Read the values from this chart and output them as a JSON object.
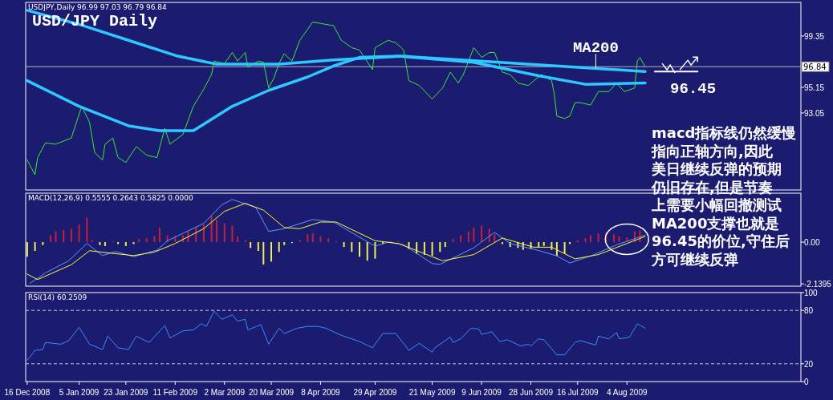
{
  "chart_data": [
    {
      "type": "line",
      "title": "USD/JPY Daily",
      "annotations": [
        "USDJPY,Daily  96.99 97.03 96.79 96.84",
        {
          "text": "MA200",
          "x": "2009-07-23",
          "y": 96.7
        },
        {
          "text": "96.45",
          "x": "2009-08-12",
          "y": 96.45
        },
        "macd指标线仍然缓慢",
        "指向正轴方向,因此",
        "美日继续反弹的预期",
        "仍旧存在,但是节奏",
        "上需要小幅回撤测试",
        "MA200支撑也就是",
        "96.45的价位,守住后",
        "方可继续反弹"
      ],
      "xlim": [
        "2008-12-15T10:00",
        "2009-10-10"
      ],
      "ylim": [
        86.75,
        102.1
      ],
      "yticks": [
        99.35,
        95.15,
        93.05
      ],
      "tick_labels": "y",
      "ref_lines": [
        {
          "axis": "y",
          "value": 96.84,
          "label": "96.84",
          "color": "#b4b4c8"
        }
      ],
      "series": [
        {
          "color": "#33ee33",
          "x": [
            "2008-12-16",
            "2008-12-19",
            "2008-12-20",
            "2008-12-23",
            "2008-12-27",
            "2009-01-02",
            "2009-01-06",
            "2009-01-09",
            "2009-01-11",
            "2009-01-14",
            "2009-01-15",
            "2009-01-18",
            "2009-01-20",
            "2009-01-23",
            "2009-01-27",
            "2009-01-31",
            "2009-02-04",
            "2009-02-07",
            "2009-02-09",
            "2009-02-14",
            "2009-02-18",
            "2009-02-22",
            "2009-02-25",
            "2009-02-26",
            "2009-03-02",
            "2009-03-05",
            "2009-03-07",
            "2009-03-10",
            "2009-03-11",
            "2009-03-15",
            "2009-03-17",
            "2009-03-19",
            "2009-03-21",
            "2009-03-23",
            "2009-03-25",
            "2009-03-28",
            "2009-03-31",
            "2009-04-03",
            "2009-04-05",
            "2009-04-10",
            "2009-04-13",
            "2009-04-16",
            "2009-04-20",
            "2009-04-23",
            "2009-04-28",
            "2009-04-29",
            "2009-05-04",
            "2009-05-07",
            "2009-05-10",
            "2009-05-12",
            "2009-05-16",
            "2009-05-21",
            "2009-05-25",
            "2009-05-28",
            "2009-05-31",
            "2009-06-02",
            "2009-06-06",
            "2009-06-09",
            "2009-06-12",
            "2009-06-14",
            "2009-06-17",
            "2009-06-20",
            "2009-06-23",
            "2009-06-27",
            "2009-07-02",
            "2009-07-06",
            "2009-07-07",
            "2009-07-08",
            "2009-07-11",
            "2009-07-13",
            "2009-07-15",
            "2009-07-17",
            "2009-07-21",
            "2009-07-24",
            "2009-07-28",
            "2009-07-31",
            "2009-08-03",
            "2009-08-07",
            "2009-08-08",
            "2009-08-09",
            "2009-08-11"
          ],
          "values": [
            89.2,
            88.0,
            89.4,
            90.6,
            90.5,
            91.0,
            93.6,
            92.3,
            89.8,
            89.2,
            90.5,
            91.0,
            89.4,
            89.0,
            90.3,
            89.6,
            89.4,
            91.8,
            90.5,
            91.3,
            93.6,
            95.0,
            96.2,
            97.3,
            97.1,
            98.0,
            97.3,
            98.0,
            96.8,
            97.3,
            97.2,
            95.1,
            95.9,
            97.1,
            97.9,
            97.3,
            99.0,
            99.9,
            100.5,
            100.3,
            100.2,
            99.0,
            98.4,
            98.2,
            96.6,
            98.4,
            99.0,
            98.8,
            98.2,
            95.7,
            95.3,
            94.2,
            95.1,
            96.4,
            95.5,
            96.2,
            98.4,
            97.6,
            98.0,
            98.0,
            96.4,
            96.2,
            95.5,
            95.3,
            96.2,
            95.7,
            94.6,
            92.8,
            92.6,
            92.8,
            93.9,
            93.9,
            93.7,
            94.8,
            94.8,
            95.5,
            94.8,
            95.1,
            97.3,
            97.6,
            96.84
          ]
        },
        {
          "color": "#2ec8ff",
          "x": [
            "2008-12-16",
            "2009-01-05",
            "2009-01-24",
            "2009-02-12",
            "2009-02-27",
            "2009-03-23",
            "2009-04-13",
            "2009-05-10",
            "2009-05-16",
            "2009-06-16",
            "2009-07-15",
            "2009-08-11"
          ],
          "values": [
            101.45,
            100.3,
            99.0,
            97.7,
            97.05,
            97.05,
            97.4,
            97.7,
            97.6,
            97.2,
            96.8,
            96.45
          ]
        },
        {
          "color": "#2ec8ff",
          "x": [
            "2008-12-16",
            "2009-01-05",
            "2009-01-24",
            "2009-02-05",
            "2009-02-18",
            "2009-03-05",
            "2009-03-19",
            "2009-04-03",
            "2009-04-13",
            "2009-04-23",
            "2009-05-08",
            "2009-06-06",
            "2009-07-01",
            "2009-07-19",
            "2009-08-11"
          ],
          "values": [
            95.7,
            93.6,
            92.0,
            91.6,
            91.6,
            93.6,
            94.9,
            96.0,
            96.9,
            97.6,
            97.7,
            97.2,
            96.1,
            95.4,
            95.5
          ]
        }
      ]
    },
    {
      "type": "bar",
      "annotations": [
        "MACD(12,26,9) 0.5555 0.2643 0.5825 0.0000"
      ],
      "xlim": [
        "2008-12-15T10:00",
        "2009-10-10"
      ],
      "ylim": [
        -2.26,
        2.51
      ],
      "yticks": [
        {
          "value": 0,
          "label": "0.00"
        },
        -2.1395
      ],
      "tick_labels": "y",
      "series": [
        {
          "x": [
            "2008-12-16",
            "2008-12-19",
            "2008-12-22",
            "2008-12-25",
            "2008-12-27",
            "2008-12-30",
            "2009-01-02",
            "2009-01-05",
            "2009-01-08",
            "2009-01-10",
            "2009-01-13",
            "2009-01-15",
            "2009-01-18",
            "2009-01-20",
            "2009-01-23",
            "2009-01-26",
            "2009-01-28",
            "2009-01-31",
            "2009-02-03",
            "2009-02-05",
            "2009-02-08",
            "2009-02-11",
            "2009-02-14",
            "2009-02-16",
            "2009-02-19",
            "2009-02-22",
            "2009-02-25",
            "2009-02-27",
            "2009-03-02",
            "2009-03-05",
            "2009-03-07",
            "2009-03-10",
            "2009-03-12",
            "2009-03-15",
            "2009-03-17",
            "2009-03-20",
            "2009-03-23",
            "2009-03-25",
            "2009-03-28",
            "2009-03-31",
            "2009-04-03",
            "2009-04-05",
            "2009-04-08",
            "2009-04-11",
            "2009-04-14",
            "2009-04-17",
            "2009-04-20",
            "2009-04-23",
            "2009-04-26",
            "2009-04-29",
            "2009-05-02",
            "2009-05-05",
            "2009-05-08",
            "2009-05-12",
            "2009-05-15",
            "2009-05-18",
            "2009-05-21",
            "2009-05-24",
            "2009-05-26",
            "2009-05-29",
            "2009-06-01",
            "2009-06-04",
            "2009-06-06",
            "2009-06-09",
            "2009-06-12",
            "2009-06-14",
            "2009-06-17",
            "2009-06-20",
            "2009-06-23",
            "2009-06-25",
            "2009-06-28",
            "2009-07-01",
            "2009-07-03",
            "2009-07-06",
            "2009-07-08",
            "2009-07-11",
            "2009-07-13",
            "2009-07-16",
            "2009-07-19",
            "2009-07-21",
            "2009-07-24",
            "2009-07-27",
            "2009-07-30",
            "2009-08-01",
            "2009-08-04",
            "2009-08-07",
            "2009-08-09"
          ],
          "values": [
            -0.75,
            -0.45,
            -0.15,
            0.35,
            0.55,
            0.62,
            0.68,
            0.9,
            1.25,
            0.1,
            -0.15,
            -0.2,
            0.05,
            -0.1,
            -0.2,
            -0.1,
            0.15,
            0.2,
            0.3,
            0.75,
            0.35,
            0.3,
            0.35,
            0.55,
            0.75,
            0.9,
            1.35,
            1.15,
            0.95,
            0.85,
            0.3,
            0.1,
            -0.3,
            -0.45,
            -1.15,
            -1.0,
            -0.5,
            -0.15,
            -0.05,
            0.1,
            0.4,
            0.45,
            0.3,
            0.2,
            0.05,
            -0.25,
            -0.5,
            -0.75,
            -0.95,
            -0.85,
            -0.1,
            0.05,
            0.05,
            -0.35,
            -0.6,
            -0.65,
            -0.7,
            -0.5,
            -0.25,
            0.15,
            0.35,
            0.55,
            0.75,
            0.85,
            0.7,
            0.4,
            -0.1,
            -0.25,
            -0.3,
            -0.4,
            -0.35,
            -0.25,
            -0.2,
            -0.4,
            -0.7,
            -0.6,
            -0.1,
            0.1,
            0.2,
            0.35,
            0.45,
            0.5,
            0.4,
            0.3,
            0.25,
            0.55,
            0.6
          ],
          "colors": [
            "#f0f050",
            "#f0f050",
            "#f0f050",
            "#c81e3c",
            "#c81e3c",
            "#c81e3c",
            "#c81e3c",
            "#c81e3c",
            "#c81e3c",
            "#c81e3c",
            "#f0f050",
            "#f0f050",
            "#c81e3c",
            "#f0f050",
            "#f0f050",
            "#f0f050",
            "#c81e3c",
            "#c81e3c",
            "#c81e3c",
            "#c81e3c",
            "#c81e3c",
            "#c81e3c",
            "#c81e3c",
            "#c81e3c",
            "#c81e3c",
            "#c81e3c",
            "#c81e3c",
            "#c81e3c",
            "#c81e3c",
            "#c81e3c",
            "#c81e3c",
            "#c81e3c",
            "#f0f050",
            "#f0f050",
            "#f0f050",
            "#f0f050",
            "#f0f050",
            "#f0f050",
            "#f0f050",
            "#c81e3c",
            "#c81e3c",
            "#c81e3c",
            "#c81e3c",
            "#c81e3c",
            "#c81e3c",
            "#f0f050",
            "#f0f050",
            "#f0f050",
            "#f0f050",
            "#f0f050",
            "#f0f050",
            "#c81e3c",
            "#c81e3c",
            "#f0f050",
            "#f0f050",
            "#f0f050",
            "#f0f050",
            "#f0f050",
            "#f0f050",
            "#c81e3c",
            "#c81e3c",
            "#c81e3c",
            "#c81e3c",
            "#c81e3c",
            "#c81e3c",
            "#c81e3c",
            "#f0f050",
            "#f0f050",
            "#f0f050",
            "#f0f050",
            "#f0f050",
            "#f0f050",
            "#f0f050",
            "#f0f050",
            "#f0f050",
            "#f0f050",
            "#f0f050",
            "#c81e3c",
            "#c81e3c",
            "#c81e3c",
            "#c81e3c",
            "#c81e3c",
            "#c81e3c",
            "#c81e3c",
            "#c81e3c",
            "#c81e3c",
            "#c81e3c"
          ]
        },
        {
          "type": "line",
          "color": "#6496ff",
          "x": [
            "2008-12-17",
            "2008-12-23",
            "2009-01-01",
            "2009-01-08",
            "2009-01-14",
            "2009-01-19",
            "2009-01-26",
            "2009-02-04",
            "2009-02-08",
            "2009-02-22",
            "2009-03-01",
            "2009-03-05",
            "2009-03-14",
            "2009-03-19",
            "2009-03-25",
            "2009-04-05",
            "2009-04-13",
            "2009-04-29",
            "2009-05-04",
            "2009-05-10",
            "2009-05-21",
            "2009-05-24",
            "2009-06-06",
            "2009-06-14",
            "2009-06-20",
            "2009-07-01",
            "2009-07-08",
            "2009-07-13",
            "2009-07-21",
            "2009-07-31",
            "2009-08-11"
          ],
          "values": [
            -2.12,
            -1.58,
            -0.96,
            -0.07,
            -0.69,
            -0.48,
            -0.75,
            -0.41,
            0.07,
            0.96,
            1.92,
            2.19,
            1.78,
            0.55,
            0.69,
            1.16,
            1.03,
            -0.21,
            0,
            -0.14,
            -1.1,
            -1.14,
            -0.29,
            0.5,
            -0.07,
            -0.43,
            -0.71,
            -1.07,
            -0.71,
            -0.14,
            0.36
          ]
        },
        {
          "type": "line",
          "color": "#ffff33",
          "x": [
            "2008-12-16",
            "2008-12-20",
            "2009-01-02",
            "2009-01-09",
            "2009-01-16",
            "2009-01-26",
            "2009-02-03",
            "2009-02-11",
            "2009-02-22",
            "2009-03-02",
            "2009-03-10",
            "2009-03-17",
            "2009-03-25",
            "2009-03-31",
            "2009-04-08",
            "2009-04-14",
            "2009-04-29",
            "2009-05-08",
            "2009-05-21",
            "2009-05-25",
            "2009-06-06",
            "2009-06-17",
            "2009-06-29",
            "2009-07-06",
            "2009-07-15",
            "2009-07-24",
            "2009-08-04",
            "2009-08-11"
          ],
          "values": [
            -1.64,
            -1.92,
            -1.16,
            -0.44,
            -0.55,
            -0.69,
            -0.51,
            -0.07,
            0.69,
            1.58,
            1.99,
            1.64,
            0.75,
            0.69,
            1.03,
            1.03,
            0.07,
            -0.07,
            -0.75,
            -0.96,
            -0.64,
            0.21,
            -0.26,
            -0.26,
            -0.86,
            -0.64,
            -0.07,
            0.29
          ]
        }
      ]
    },
    {
      "type": "line",
      "annotations": [
        "RSI(14) 60.2509"
      ],
      "xlim": [
        "2008-12-15T10:00",
        "2009-10-10"
      ],
      "ylim": [
        0,
        100
      ],
      "xticks": [
        {
          "value": "2008-12-16",
          "label": "16 Dec 2008"
        },
        {
          "value": "2009-01-05",
          "label": "5 Jan 2009"
        },
        {
          "value": "2009-01-23",
          "label": "23 Jan 2009"
        },
        {
          "value": "2009-02-11",
          "label": "11 Feb 2009"
        },
        {
          "value": "2009-03-02",
          "label": "2 Mar 2009"
        },
        {
          "value": "2009-03-20",
          "label": "20 Mar 2009"
        },
        {
          "value": "2009-04-08",
          "label": "8 Apr 2009"
        },
        {
          "value": "2009-04-29",
          "label": "29 Apr 2009"
        },
        {
          "value": "2009-05-21",
          "label": "21 May 2009"
        },
        {
          "value": "2009-06-09",
          "label": "9 Jun 2009"
        },
        {
          "value": "2009-06-28",
          "label": "28 Jun 2009"
        },
        {
          "value": "2009-07-16",
          "label": "16 Jul 2009"
        },
        {
          "value": "2009-08-04",
          "label": "4 Aug 2009"
        }
      ],
      "yticks": [
        100,
        80,
        20,
        0
      ],
      "ref_lines": [
        {
          "axis": "y",
          "value": 80,
          "color": "#c8c8dc",
          "line_style": "dashed"
        },
        {
          "axis": "y",
          "value": 20,
          "color": "#c8c8dc",
          "line_style": "dashed"
        }
      ],
      "series": [
        {
          "color": "#3c8cff",
          "x": [
            "2008-12-16",
            "2008-12-19",
            "2008-12-22",
            "2008-12-23",
            "2008-12-29",
            "2009-01-01",
            "2009-01-05",
            "2009-01-09",
            "2009-01-14",
            "2009-01-16",
            "2009-01-20",
            "2009-01-24",
            "2009-01-27",
            "2009-02-01",
            "2009-02-07",
            "2009-02-09",
            "2009-02-14",
            "2009-02-18",
            "2009-02-21",
            "2009-02-23",
            "2009-02-26",
            "2009-03-01",
            "2009-03-05",
            "2009-03-07",
            "2009-03-10",
            "2009-03-11",
            "2009-03-16",
            "2009-03-19",
            "2009-03-23",
            "2009-03-25",
            "2009-03-30",
            "2009-04-03",
            "2009-04-07",
            "2009-04-10",
            "2009-04-16",
            "2009-04-20",
            "2009-04-23",
            "2009-04-28",
            "2009-05-02",
            "2009-05-07",
            "2009-05-12",
            "2009-05-16",
            "2009-05-21",
            "2009-05-22",
            "2009-05-28",
            "2009-05-29",
            "2009-06-01",
            "2009-06-05",
            "2009-06-08",
            "2009-06-09",
            "2009-06-13",
            "2009-06-16",
            "2009-06-19",
            "2009-06-24",
            "2009-06-27",
            "2009-06-28",
            "2009-07-01",
            "2009-07-03",
            "2009-07-08",
            "2009-07-11",
            "2009-07-15",
            "2009-07-17",
            "2009-07-23",
            "2009-07-24",
            "2009-07-28",
            "2009-07-31",
            "2009-08-01",
            "2009-08-05",
            "2009-08-08",
            "2009-08-11"
          ],
          "values": [
            24,
            35,
            36,
            44,
            42,
            46,
            61,
            42,
            36,
            51,
            38,
            36,
            51,
            44,
            63,
            49,
            57,
            58,
            65,
            62,
            79,
            70,
            75,
            68,
            70,
            58,
            64,
            42,
            60,
            54,
            60,
            62,
            62,
            60,
            52,
            48,
            45,
            38,
            54,
            54,
            35,
            43,
            33,
            38,
            50,
            44,
            48,
            60,
            59,
            53,
            56,
            45,
            47,
            40,
            42,
            40,
            48,
            47,
            30,
            30,
            44,
            46,
            41,
            51,
            48,
            55,
            48,
            50,
            65,
            60
          ]
        }
      ]
    }
  ]
}
